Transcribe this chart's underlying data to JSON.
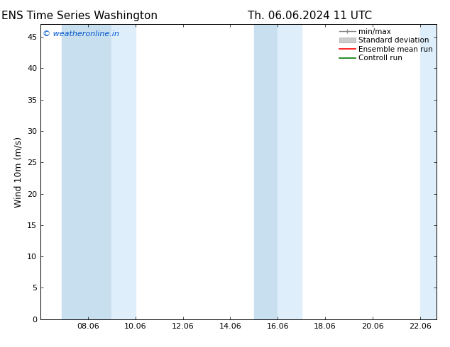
{
  "title_left": "ENS Time Series Washington",
  "title_right": "Th. 06.06.2024 11 UTC",
  "ylabel": "Wind 10m (m/s)",
  "watermark": "© weatheronline.in",
  "watermark_color": "#0055cc",
  "ylim": [
    0,
    47
  ],
  "yticks": [
    0,
    5,
    10,
    15,
    20,
    25,
    30,
    35,
    40,
    45
  ],
  "xlim_start": 6.0,
  "xlim_end": 22.7,
  "xtick_labels": [
    "08.06",
    "10.06",
    "12.06",
    "14.06",
    "16.06",
    "18.06",
    "20.06",
    "22.06"
  ],
  "xtick_positions": [
    8.0,
    10.0,
    12.0,
    14.0,
    16.0,
    18.0,
    20.0,
    22.0
  ],
  "shaded_bands": [
    {
      "x_start": 6.9,
      "x_end": 9.0
    },
    {
      "x_start": 9.0,
      "x_end": 10.0
    },
    {
      "x_start": 15.0,
      "x_end": 17.0
    },
    {
      "x_start": 22.0,
      "x_end": 22.7
    }
  ],
  "shade_color_dark": "#c8dff0",
  "shade_color_light": "#deeefa",
  "shade_color": "#d6ecf7",
  "bg_color": "#ffffff",
  "legend_entries": [
    {
      "label": "min/max",
      "color": "#aaaaaa",
      "style": "minmax"
    },
    {
      "label": "Standard deviation",
      "color": "#cccccc",
      "style": "stddev"
    },
    {
      "label": "Ensemble mean run",
      "color": "#ff0000",
      "style": "line"
    },
    {
      "label": "Controll run",
      "color": "#007700",
      "style": "line"
    }
  ],
  "title_fontsize": 11,
  "axis_label_fontsize": 9,
  "tick_fontsize": 8,
  "legend_fontsize": 7.5,
  "watermark_fontsize": 8
}
